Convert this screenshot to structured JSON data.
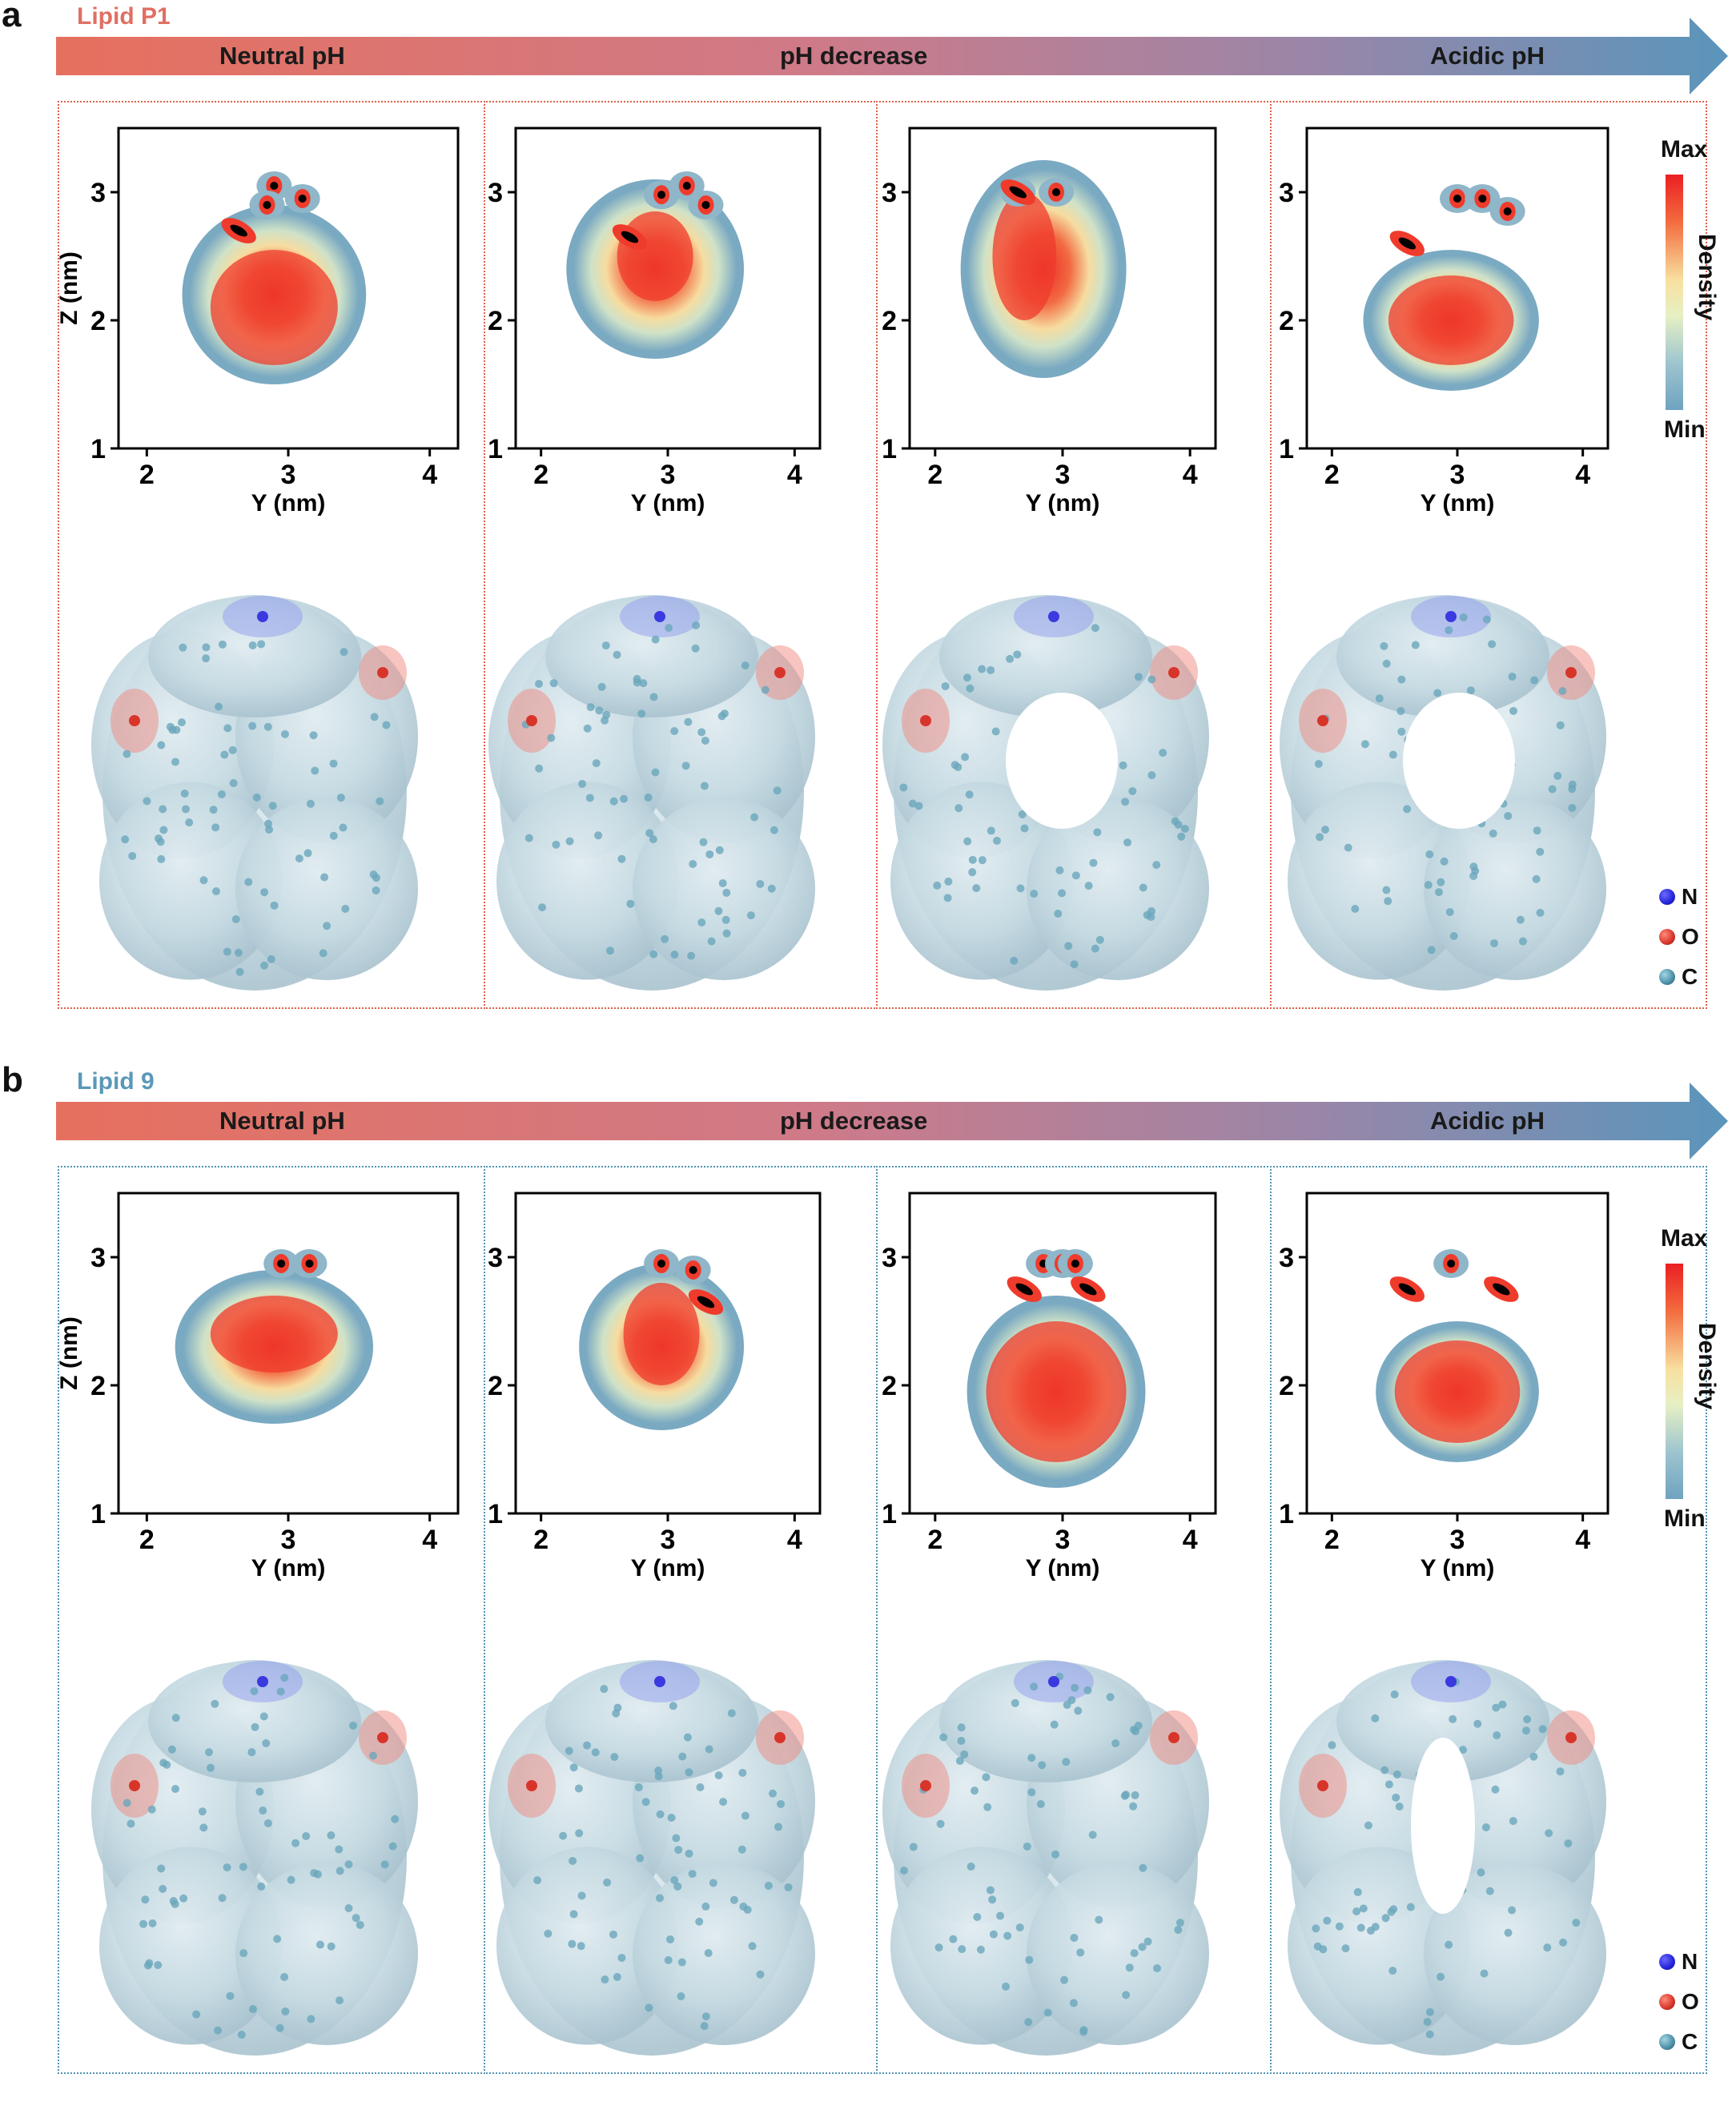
{
  "figure": {
    "gradient_colors": [
      "#e6705e",
      "#d07a88",
      "#9a86a8",
      "#5b95bb"
    ],
    "panels": [
      {
        "letter": "a",
        "lipid": "Lipid P1",
        "lipid_color": "#e06f63",
        "frame_color": "#e0604a",
        "arrow_labels": {
          "left": "Neutral pH",
          "middle": "pH decrease",
          "right": "Acidic pH"
        }
      },
      {
        "letter": "b",
        "lipid": "Lipid 9",
        "lipid_color": "#5a98b8",
        "frame_color": "#4f94b4",
        "arrow_labels": {
          "left": "Neutral pH",
          "middle": "pH decrease",
          "right": "Acidic pH"
        }
      }
    ],
    "plot": {
      "xlabel": "Y (nm)",
      "ylabel": "Z (nm)",
      "xticks": [
        "2",
        "3",
        "4"
      ],
      "yticks": [
        "1",
        "2",
        "3"
      ],
      "xlim": [
        1.8,
        4.2
      ],
      "ylim": [
        1,
        3.5
      ]
    },
    "colorbar": {
      "max": "Max",
      "min": "Min",
      "title": "Density"
    },
    "atoms": [
      {
        "label": "N",
        "color": "#2424d8"
      },
      {
        "label": "O",
        "color": "#d8352a"
      },
      {
        "label": "C",
        "color": "#4a8fa6"
      }
    ]
  }
}
